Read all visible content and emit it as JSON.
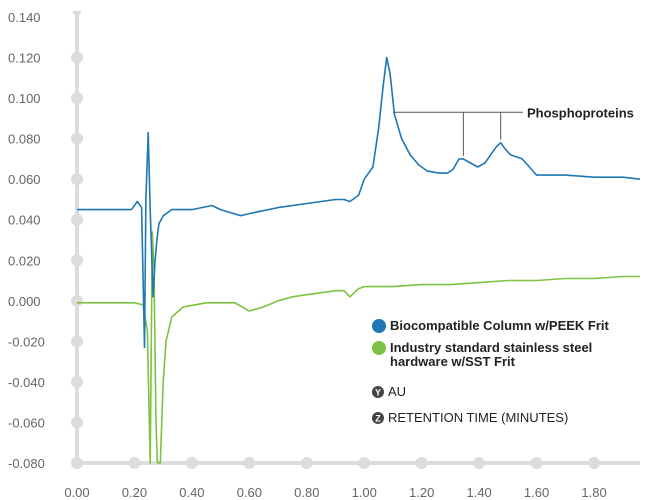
{
  "chart_data": {
    "type": "line",
    "xlabel": "RETENTION TIME (MINUTES)",
    "ylabel": "AU",
    "xlim": [
      0.0,
      1.96
    ],
    "ylim": [
      -0.08,
      0.14
    ],
    "x_ticks": [
      "0.00",
      "0.20",
      "0.40",
      "0.60",
      "0.80",
      "1.00",
      "1.20",
      "1.40",
      "1.60",
      "1.80"
    ],
    "x_tick_values": [
      0.0,
      0.2,
      0.4,
      0.6,
      0.8,
      1.0,
      1.2,
      1.4,
      1.6,
      1.8
    ],
    "y_ticks": [
      "0.140",
      "0.120",
      "0.100",
      "0.080",
      "0.060",
      "0.040",
      "0.020",
      "0.000",
      "-0.020",
      "-0.040",
      "-0.060",
      "-0.080"
    ],
    "y_tick_values": [
      0.14,
      0.12,
      0.1,
      0.08,
      0.06,
      0.04,
      0.02,
      0.0,
      -0.02,
      -0.04,
      -0.06,
      -0.08
    ],
    "series": [
      {
        "name": "Biocompatible Column w/PEEK Frit",
        "color": "#1f77b4",
        "points": [
          [
            0.0,
            0.045
          ],
          [
            0.1,
            0.045
          ],
          [
            0.19,
            0.045
          ],
          [
            0.21,
            0.049
          ],
          [
            0.225,
            0.046
          ],
          [
            0.235,
            -0.023
          ],
          [
            0.24,
            0.05
          ],
          [
            0.248,
            0.083
          ],
          [
            0.255,
            0.045
          ],
          [
            0.265,
            0.002
          ],
          [
            0.272,
            0.02
          ],
          [
            0.278,
            0.03
          ],
          [
            0.285,
            0.038
          ],
          [
            0.3,
            0.042
          ],
          [
            0.33,
            0.045
          ],
          [
            0.4,
            0.045
          ],
          [
            0.47,
            0.047
          ],
          [
            0.5,
            0.045
          ],
          [
            0.57,
            0.042
          ],
          [
            0.6,
            0.043
          ],
          [
            0.7,
            0.046
          ],
          [
            0.8,
            0.048
          ],
          [
            0.9,
            0.05
          ],
          [
            0.93,
            0.05
          ],
          [
            0.95,
            0.049
          ],
          [
            0.98,
            0.052
          ],
          [
            1.0,
            0.06
          ],
          [
            1.03,
            0.066
          ],
          [
            1.05,
            0.085
          ],
          [
            1.065,
            0.105
          ],
          [
            1.078,
            0.12
          ],
          [
            1.09,
            0.112
          ],
          [
            1.105,
            0.092
          ],
          [
            1.13,
            0.08
          ],
          [
            1.16,
            0.072
          ],
          [
            1.19,
            0.067
          ],
          [
            1.22,
            0.064
          ],
          [
            1.26,
            0.063
          ],
          [
            1.29,
            0.063
          ],
          [
            1.31,
            0.065
          ],
          [
            1.33,
            0.07
          ],
          [
            1.345,
            0.07
          ],
          [
            1.37,
            0.068
          ],
          [
            1.395,
            0.066
          ],
          [
            1.42,
            0.068
          ],
          [
            1.44,
            0.072
          ],
          [
            1.46,
            0.076
          ],
          [
            1.475,
            0.078
          ],
          [
            1.49,
            0.075
          ],
          [
            1.51,
            0.072
          ],
          [
            1.55,
            0.07
          ],
          [
            1.6,
            0.062
          ],
          [
            1.7,
            0.062
          ],
          [
            1.8,
            0.061
          ],
          [
            1.9,
            0.061
          ],
          [
            1.96,
            0.06
          ]
        ]
      },
      {
        "name": "Industry standard stainless steel hardware w/SST Frit",
        "color": "#7dc243",
        "points": [
          [
            0.0,
            -0.001
          ],
          [
            0.1,
            -0.001
          ],
          [
            0.2,
            -0.001
          ],
          [
            0.23,
            -0.002
          ],
          [
            0.245,
            -0.015
          ],
          [
            0.255,
            -0.08
          ],
          [
            0.262,
            0.034
          ],
          [
            0.268,
            0.015
          ],
          [
            0.275,
            -0.06
          ],
          [
            0.28,
            -0.08
          ],
          [
            0.29,
            -0.08
          ],
          [
            0.3,
            -0.04
          ],
          [
            0.31,
            -0.02
          ],
          [
            0.33,
            -0.008
          ],
          [
            0.37,
            -0.003
          ],
          [
            0.45,
            -0.001
          ],
          [
            0.5,
            -0.001
          ],
          [
            0.55,
            -0.001
          ],
          [
            0.6,
            -0.005
          ],
          [
            0.65,
            -0.003
          ],
          [
            0.7,
            0.0
          ],
          [
            0.75,
            0.002
          ],
          [
            0.8,
            0.003
          ],
          [
            0.85,
            0.004
          ],
          [
            0.9,
            0.005
          ],
          [
            0.93,
            0.005
          ],
          [
            0.95,
            0.002
          ],
          [
            0.98,
            0.006
          ],
          [
            1.0,
            0.007
          ],
          [
            1.1,
            0.007
          ],
          [
            1.2,
            0.008
          ],
          [
            1.3,
            0.008
          ],
          [
            1.4,
            0.009
          ],
          [
            1.5,
            0.01
          ],
          [
            1.6,
            0.01
          ],
          [
            1.7,
            0.011
          ],
          [
            1.8,
            0.011
          ],
          [
            1.9,
            0.012
          ],
          [
            1.96,
            0.012
          ]
        ]
      }
    ],
    "annotation": {
      "text": "Phosphoproteins",
      "targets_x": [
        1.1,
        1.345,
        1.475
      ],
      "line_y": 0.093
    },
    "legend": {
      "placement": "bottom-right",
      "entries": [
        {
          "marker": "dot",
          "color": "#1f77b4",
          "lines": [
            "Biocompatible Column w/PEEK Frit"
          ],
          "bold": true
        },
        {
          "marker": "dot",
          "color": "#7dc243",
          "lines": [
            "Industry standard stainless steel",
            "hardware w/SST Frit"
          ],
          "bold": true
        },
        {
          "marker": "badge",
          "badge": "Y",
          "color": "#444444",
          "lines": [
            "AU"
          ],
          "bold": false
        },
        {
          "marker": "badge",
          "badge": "Z",
          "color": "#444444",
          "lines": [
            "RETENTION TIME (MINUTES)"
          ],
          "bold": false
        }
      ]
    },
    "grid": false,
    "axis_color": "#dcdcdc"
  }
}
